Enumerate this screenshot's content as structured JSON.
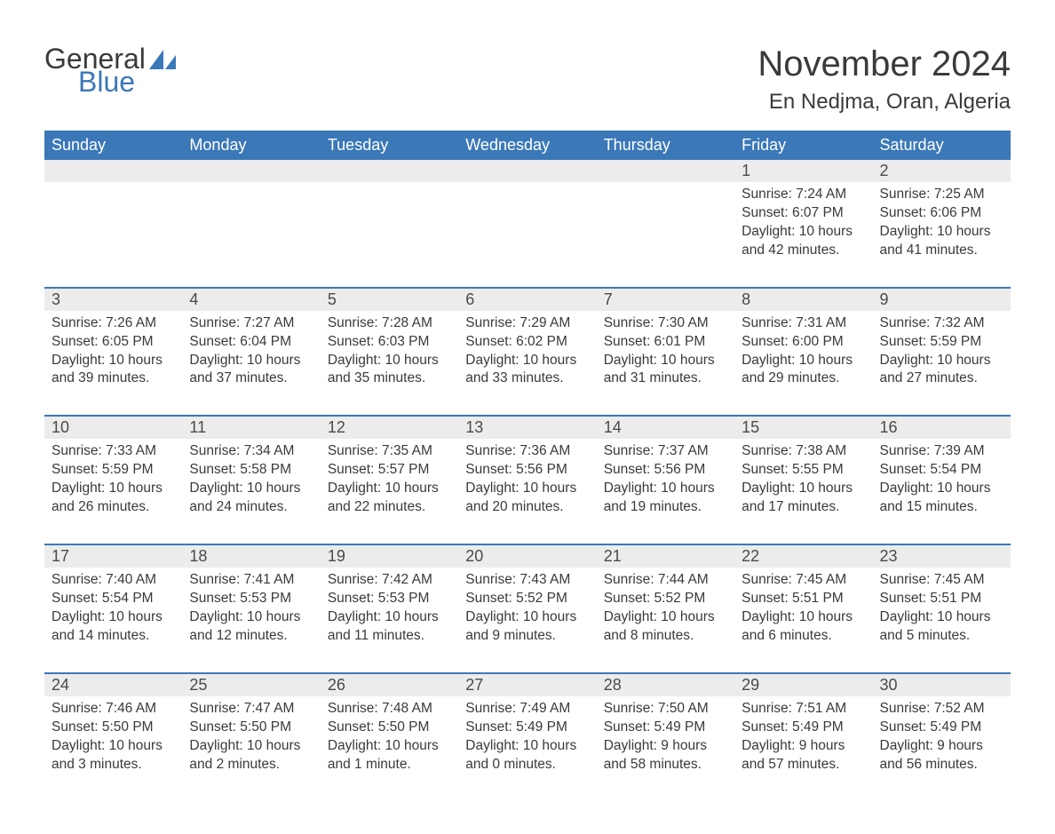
{
  "brand": {
    "line1": "General",
    "line2": "Blue",
    "logo_color": "#3b78b8",
    "text_color": "#3a3a3a"
  },
  "title": {
    "month": "November 2024",
    "location": "En Nedjma, Oran, Algeria"
  },
  "colors": {
    "header_bg": "#3b78b8",
    "header_text": "#ffffff",
    "daynum_bg": "#ececec",
    "body_text": "#3a3a3a",
    "rule": "#3b78b8",
    "page_bg": "#ffffff"
  },
  "day_headers": [
    "Sunday",
    "Monday",
    "Tuesday",
    "Wednesday",
    "Thursday",
    "Friday",
    "Saturday"
  ],
  "weeks": [
    [
      {
        "n": "",
        "sr": "",
        "ss": "",
        "dl": ""
      },
      {
        "n": "",
        "sr": "",
        "ss": "",
        "dl": ""
      },
      {
        "n": "",
        "sr": "",
        "ss": "",
        "dl": ""
      },
      {
        "n": "",
        "sr": "",
        "ss": "",
        "dl": ""
      },
      {
        "n": "",
        "sr": "",
        "ss": "",
        "dl": ""
      },
      {
        "n": "1",
        "sr": "Sunrise: 7:24 AM",
        "ss": "Sunset: 6:07 PM",
        "dl": "Daylight: 10 hours and 42 minutes."
      },
      {
        "n": "2",
        "sr": "Sunrise: 7:25 AM",
        "ss": "Sunset: 6:06 PM",
        "dl": "Daylight: 10 hours and 41 minutes."
      }
    ],
    [
      {
        "n": "3",
        "sr": "Sunrise: 7:26 AM",
        "ss": "Sunset: 6:05 PM",
        "dl": "Daylight: 10 hours and 39 minutes."
      },
      {
        "n": "4",
        "sr": "Sunrise: 7:27 AM",
        "ss": "Sunset: 6:04 PM",
        "dl": "Daylight: 10 hours and 37 minutes."
      },
      {
        "n": "5",
        "sr": "Sunrise: 7:28 AM",
        "ss": "Sunset: 6:03 PM",
        "dl": "Daylight: 10 hours and 35 minutes."
      },
      {
        "n": "6",
        "sr": "Sunrise: 7:29 AM",
        "ss": "Sunset: 6:02 PM",
        "dl": "Daylight: 10 hours and 33 minutes."
      },
      {
        "n": "7",
        "sr": "Sunrise: 7:30 AM",
        "ss": "Sunset: 6:01 PM",
        "dl": "Daylight: 10 hours and 31 minutes."
      },
      {
        "n": "8",
        "sr": "Sunrise: 7:31 AM",
        "ss": "Sunset: 6:00 PM",
        "dl": "Daylight: 10 hours and 29 minutes."
      },
      {
        "n": "9",
        "sr": "Sunrise: 7:32 AM",
        "ss": "Sunset: 5:59 PM",
        "dl": "Daylight: 10 hours and 27 minutes."
      }
    ],
    [
      {
        "n": "10",
        "sr": "Sunrise: 7:33 AM",
        "ss": "Sunset: 5:59 PM",
        "dl": "Daylight: 10 hours and 26 minutes."
      },
      {
        "n": "11",
        "sr": "Sunrise: 7:34 AM",
        "ss": "Sunset: 5:58 PM",
        "dl": "Daylight: 10 hours and 24 minutes."
      },
      {
        "n": "12",
        "sr": "Sunrise: 7:35 AM",
        "ss": "Sunset: 5:57 PM",
        "dl": "Daylight: 10 hours and 22 minutes."
      },
      {
        "n": "13",
        "sr": "Sunrise: 7:36 AM",
        "ss": "Sunset: 5:56 PM",
        "dl": "Daylight: 10 hours and 20 minutes."
      },
      {
        "n": "14",
        "sr": "Sunrise: 7:37 AM",
        "ss": "Sunset: 5:56 PM",
        "dl": "Daylight: 10 hours and 19 minutes."
      },
      {
        "n": "15",
        "sr": "Sunrise: 7:38 AM",
        "ss": "Sunset: 5:55 PM",
        "dl": "Daylight: 10 hours and 17 minutes."
      },
      {
        "n": "16",
        "sr": "Sunrise: 7:39 AM",
        "ss": "Sunset: 5:54 PM",
        "dl": "Daylight: 10 hours and 15 minutes."
      }
    ],
    [
      {
        "n": "17",
        "sr": "Sunrise: 7:40 AM",
        "ss": "Sunset: 5:54 PM",
        "dl": "Daylight: 10 hours and 14 minutes."
      },
      {
        "n": "18",
        "sr": "Sunrise: 7:41 AM",
        "ss": "Sunset: 5:53 PM",
        "dl": "Daylight: 10 hours and 12 minutes."
      },
      {
        "n": "19",
        "sr": "Sunrise: 7:42 AM",
        "ss": "Sunset: 5:53 PM",
        "dl": "Daylight: 10 hours and 11 minutes."
      },
      {
        "n": "20",
        "sr": "Sunrise: 7:43 AM",
        "ss": "Sunset: 5:52 PM",
        "dl": "Daylight: 10 hours and 9 minutes."
      },
      {
        "n": "21",
        "sr": "Sunrise: 7:44 AM",
        "ss": "Sunset: 5:52 PM",
        "dl": "Daylight: 10 hours and 8 minutes."
      },
      {
        "n": "22",
        "sr": "Sunrise: 7:45 AM",
        "ss": "Sunset: 5:51 PM",
        "dl": "Daylight: 10 hours and 6 minutes."
      },
      {
        "n": "23",
        "sr": "Sunrise: 7:45 AM",
        "ss": "Sunset: 5:51 PM",
        "dl": "Daylight: 10 hours and 5 minutes."
      }
    ],
    [
      {
        "n": "24",
        "sr": "Sunrise: 7:46 AM",
        "ss": "Sunset: 5:50 PM",
        "dl": "Daylight: 10 hours and 3 minutes."
      },
      {
        "n": "25",
        "sr": "Sunrise: 7:47 AM",
        "ss": "Sunset: 5:50 PM",
        "dl": "Daylight: 10 hours and 2 minutes."
      },
      {
        "n": "26",
        "sr": "Sunrise: 7:48 AM",
        "ss": "Sunset: 5:50 PM",
        "dl": "Daylight: 10 hours and 1 minute."
      },
      {
        "n": "27",
        "sr": "Sunrise: 7:49 AM",
        "ss": "Sunset: 5:49 PM",
        "dl": "Daylight: 10 hours and 0 minutes."
      },
      {
        "n": "28",
        "sr": "Sunrise: 7:50 AM",
        "ss": "Sunset: 5:49 PM",
        "dl": "Daylight: 9 hours and 58 minutes."
      },
      {
        "n": "29",
        "sr": "Sunrise: 7:51 AM",
        "ss": "Sunset: 5:49 PM",
        "dl": "Daylight: 9 hours and 57 minutes."
      },
      {
        "n": "30",
        "sr": "Sunrise: 7:52 AM",
        "ss": "Sunset: 5:49 PM",
        "dl": "Daylight: 9 hours and 56 minutes."
      }
    ]
  ]
}
